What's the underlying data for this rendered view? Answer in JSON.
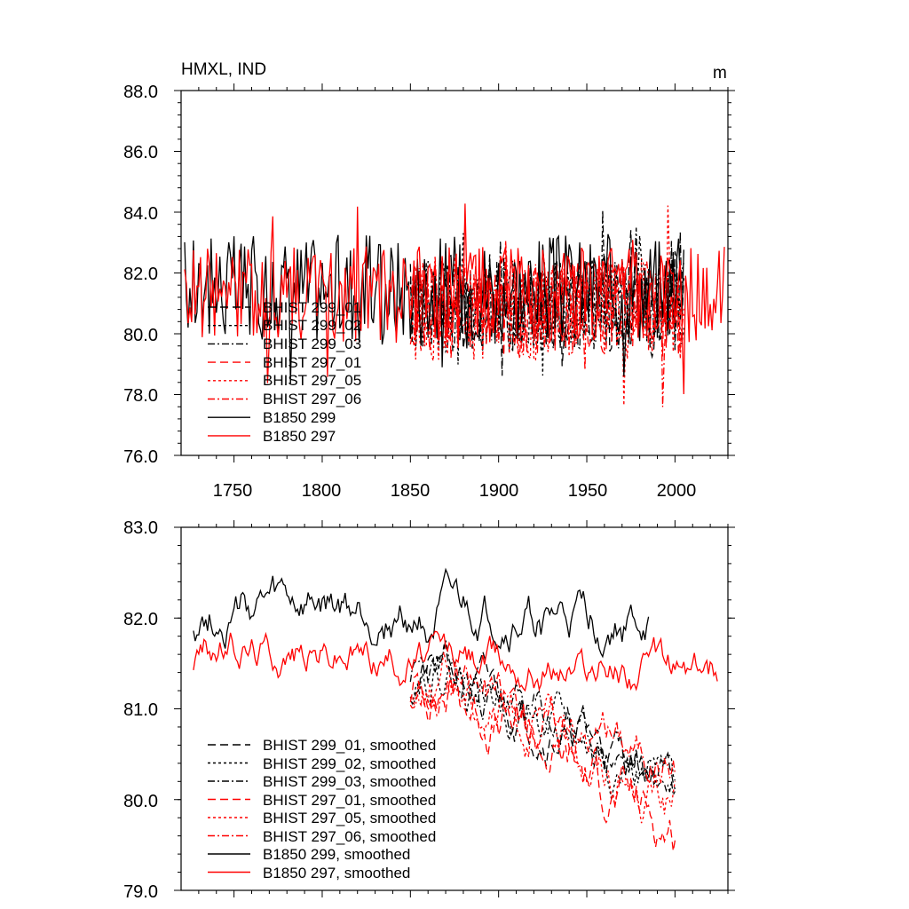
{
  "figure": {
    "background": "#ffffff",
    "colors": {
      "black": "#000000",
      "red": "#ff0000"
    }
  },
  "chart_data": [
    {
      "type": "line",
      "title": "HMXL, IND",
      "units": "m",
      "xlabel": "",
      "ylabel": "",
      "xlim": [
        1720,
        2030
      ],
      "ylim": [
        76.0,
        88.0
      ],
      "xticks": [
        1750,
        1800,
        1850,
        1900,
        1950,
        2000
      ],
      "xtick_labels": [
        "1750",
        "1800",
        "1850",
        "1900",
        "1950",
        "2000"
      ],
      "yticks": [
        76.0,
        78.0,
        80.0,
        82.0,
        84.0,
        86.0,
        88.0
      ],
      "ytick_labels": [
        "76.0",
        "78.0",
        "80.0",
        "82.0",
        "84.0",
        "86.0",
        "88.0"
      ],
      "legend_position": "bottom-left",
      "series": [
        {
          "name": "BHIST 299_01",
          "color": "#000000",
          "dash": "long-dash",
          "x_start": 1850,
          "x_end": 2005,
          "mean": 81.0,
          "amplitude": 1.6,
          "seed": 11
        },
        {
          "name": "BHIST 299_02",
          "color": "#000000",
          "dash": "short-dash",
          "x_start": 1850,
          "x_end": 2005,
          "mean": 81.0,
          "amplitude": 1.5,
          "seed": 12
        },
        {
          "name": "BHIST 299_03",
          "color": "#000000",
          "dash": "dash-dot",
          "x_start": 1850,
          "x_end": 2005,
          "mean": 80.9,
          "amplitude": 1.5,
          "seed": 13
        },
        {
          "name": "BHIST 297_01",
          "color": "#ff0000",
          "dash": "long-dash",
          "x_start": 1850,
          "x_end": 2005,
          "mean": 80.8,
          "amplitude": 1.6,
          "seed": 14
        },
        {
          "name": "BHIST 297_05",
          "color": "#ff0000",
          "dash": "short-dash",
          "x_start": 1850,
          "x_end": 2005,
          "mean": 80.8,
          "amplitude": 1.7,
          "seed": 15
        },
        {
          "name": "BHIST 297_06",
          "color": "#ff0000",
          "dash": "dash-dot",
          "x_start": 1850,
          "x_end": 2005,
          "mean": 80.9,
          "amplitude": 1.5,
          "seed": 16
        },
        {
          "name": "B1850 299",
          "color": "#000000",
          "dash": "solid",
          "x_start": 1722,
          "x_end": 2005,
          "mean": 81.5,
          "amplitude": 1.8,
          "seed": 17
        },
        {
          "name": "B1850 297",
          "color": "#ff0000",
          "dash": "solid",
          "x_start": 1722,
          "x_end": 2028,
          "mean": 81.3,
          "amplitude": 1.6,
          "seed": 18
        }
      ]
    },
    {
      "type": "line",
      "title": "",
      "xlabel": "",
      "ylabel": "",
      "xlim": [
        1720,
        2030
      ],
      "ylim": [
        79.0,
        83.0
      ],
      "xticks": [
        1750,
        1800,
        1850,
        1900,
        1950,
        2000
      ],
      "yticks": [
        79.0,
        80.0,
        81.0,
        82.0,
        83.0
      ],
      "ytick_labels": [
        "79.0",
        "80.0",
        "81.0",
        "82.0",
        "83.0"
      ],
      "legend_position": "bottom-left",
      "series": [
        {
          "name": "BHIST 299_01, smoothed",
          "color": "#000000",
          "dash": "long-dash",
          "x_start": 1850,
          "x_end": 2000,
          "mean": 81.1,
          "amplitude": 0.35,
          "trend_start": 81.5,
          "trend_end": 80.2,
          "seed": 21
        },
        {
          "name": "BHIST 299_02, smoothed",
          "color": "#000000",
          "dash": "short-dash",
          "x_start": 1850,
          "x_end": 2000,
          "mean": 81.2,
          "amplitude": 0.35,
          "trend_start": 81.6,
          "trend_end": 80.0,
          "seed": 22
        },
        {
          "name": "BHIST 299_03, smoothed",
          "color": "#000000",
          "dash": "dash-dot",
          "x_start": 1850,
          "x_end": 2000,
          "mean": 81.1,
          "amplitude": 0.35,
          "trend_start": 81.5,
          "trend_end": 80.1,
          "seed": 23
        },
        {
          "name": "BHIST 297_01, smoothed",
          "color": "#ff0000",
          "dash": "long-dash",
          "x_start": 1850,
          "x_end": 2000,
          "mean": 80.9,
          "amplitude": 0.4,
          "trend_start": 81.4,
          "trend_end": 79.6,
          "seed": 24
        },
        {
          "name": "BHIST 297_05, smoothed",
          "color": "#ff0000",
          "dash": "short-dash",
          "x_start": 1850,
          "x_end": 2000,
          "mean": 81.0,
          "amplitude": 0.4,
          "trend_start": 81.5,
          "trend_end": 79.9,
          "seed": 25
        },
        {
          "name": "BHIST 297_06, smoothed",
          "color": "#ff0000",
          "dash": "dash-dot",
          "x_start": 1850,
          "x_end": 2000,
          "mean": 81.0,
          "amplitude": 0.35,
          "trend_start": 81.4,
          "trend_end": 80.4,
          "seed": 26
        },
        {
          "name": "B1850 299, smoothed",
          "color": "#000000",
          "dash": "solid",
          "x_start": 1727,
          "x_end": 1985,
          "mean": 81.9,
          "amplitude": 0.35,
          "trend_start": 82.1,
          "trend_end": 81.9,
          "seed": 27
        },
        {
          "name": "B1850 297, smoothed",
          "color": "#ff0000",
          "dash": "solid",
          "x_start": 1727,
          "x_end": 2024,
          "mean": 81.5,
          "amplitude": 0.3,
          "trend_start": 81.7,
          "trend_end": 81.4,
          "seed": 28
        }
      ]
    }
  ]
}
